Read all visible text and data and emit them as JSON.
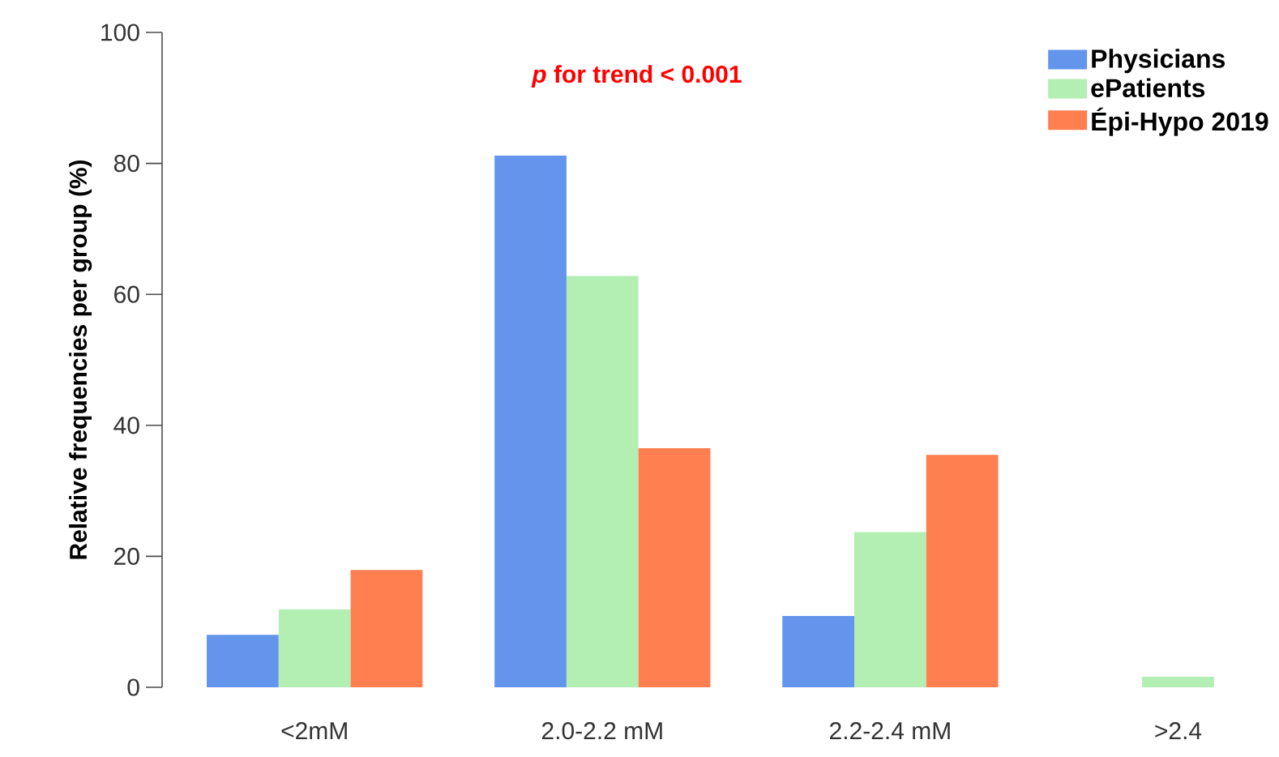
{
  "chart_data": {
    "type": "bar",
    "ylabel": "Relative frequencies per group (%)",
    "categories": [
      "<2mM",
      "2.0-2.2 mM",
      "2.2-2.4 mM",
      ">2.4"
    ],
    "series": [
      {
        "name": "Physicians",
        "color": "#6495ed",
        "values": [
          8.0,
          81.2,
          10.9,
          0
        ]
      },
      {
        "name": "ePatients",
        "color": "#b3eeb3",
        "values": [
          11.9,
          62.8,
          23.7,
          1.6
        ]
      },
      {
        "name": "Épi-Hypo 2019",
        "color": "#ff7f50",
        "values": [
          17.9,
          36.5,
          35.5,
          null
        ]
      }
    ],
    "ylim": [
      0,
      100
    ],
    "yticks": [
      0,
      20,
      40,
      60,
      80,
      100
    ],
    "legend": "top right",
    "annotations": [
      "*p* for trend < 0.001"
    ]
  }
}
